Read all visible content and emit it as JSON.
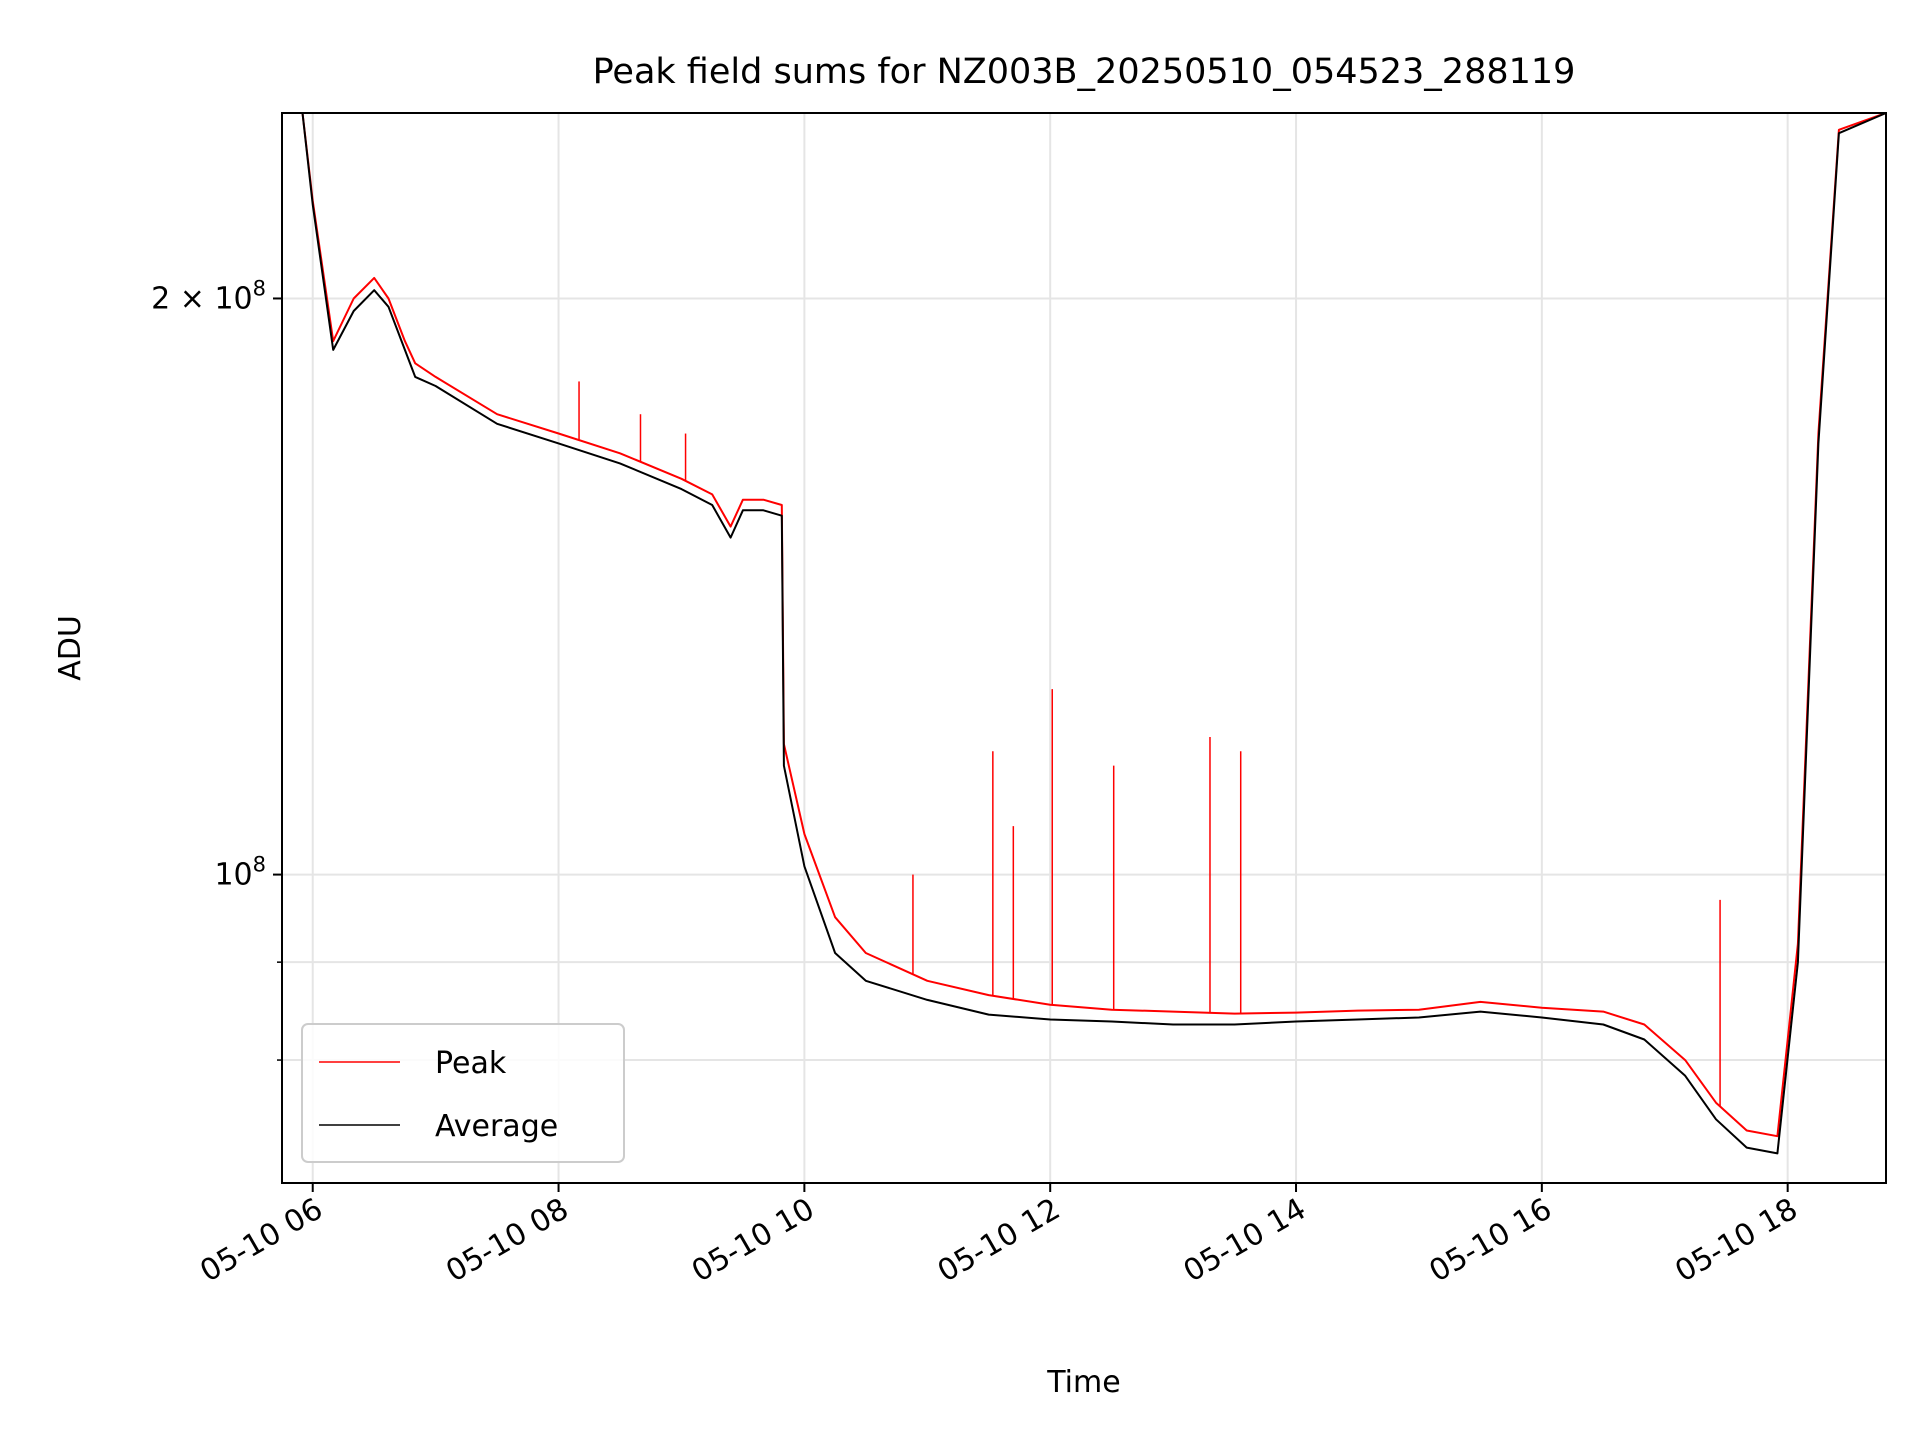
{
  "chart_data": {
    "type": "line",
    "title": "Peak field sums for NZ003B_20250510_054523_288119",
    "xlabel": "Time",
    "ylabel": "ADU",
    "xscale": "time",
    "yscale": "log",
    "xlim": [
      "2025-05-10 05:45",
      "2025-05-10 18:48"
    ],
    "ylim": [
      69000000,
      250000000
    ],
    "grid": true,
    "legend_position": "lower left",
    "x_ticks": [
      {
        "value": "2025-05-10 06:00",
        "label": "05-10 06"
      },
      {
        "value": "2025-05-10 08:00",
        "label": "05-10 08"
      },
      {
        "value": "2025-05-10 10:00",
        "label": "05-10 10"
      },
      {
        "value": "2025-05-10 12:00",
        "label": "05-10 12"
      },
      {
        "value": "2025-05-10 14:00",
        "label": "05-10 14"
      },
      {
        "value": "2025-05-10 16:00",
        "label": "05-10 16"
      },
      {
        "value": "2025-05-10 18:00",
        "label": "05-10 18"
      }
    ],
    "y_ticks": [
      {
        "value": 100000000,
        "label": "10",
        "exp": "8",
        "mantissa": ""
      },
      {
        "value": 200000000,
        "label": "10",
        "exp": "8",
        "mantissa": "2 × "
      }
    ],
    "y_minor_ticks": [
      80000000,
      90000000
    ],
    "series": [
      {
        "name": "Peak",
        "color": "#ff0000",
        "x": [
          "2025-05-10 05:45",
          "2025-05-10 05:55",
          "2025-05-10 06:00",
          "2025-05-10 06:10",
          "2025-05-10 06:20",
          "2025-05-10 06:30",
          "2025-05-10 06:37",
          "2025-05-10 06:45",
          "2025-05-10 06:50",
          "2025-05-10 07:00",
          "2025-05-10 07:30",
          "2025-05-10 08:00",
          "2025-05-10 08:30",
          "2025-05-10 09:00",
          "2025-05-10 09:15",
          "2025-05-10 09:24",
          "2025-05-10 09:30",
          "2025-05-10 09:40",
          "2025-05-10 09:49",
          "2025-05-10 09:50",
          "2025-05-10 10:00",
          "2025-05-10 10:15",
          "2025-05-10 10:30",
          "2025-05-10 11:00",
          "2025-05-10 11:30",
          "2025-05-10 12:00",
          "2025-05-10 12:30",
          "2025-05-10 13:00",
          "2025-05-10 13:30",
          "2025-05-10 14:00",
          "2025-05-10 14:30",
          "2025-05-10 15:00",
          "2025-05-10 15:30",
          "2025-05-10 16:00",
          "2025-05-10 16:30",
          "2025-05-10 16:50",
          "2025-05-10 17:10",
          "2025-05-10 17:25",
          "2025-05-10 17:40",
          "2025-05-10 17:55",
          "2025-05-10 18:05",
          "2025-05-10 18:15",
          "2025-05-10 18:25",
          "2025-05-10 18:48"
        ],
        "y": [
          250000000,
          250000000,
          225000000,
          190000000,
          200000000,
          205000000,
          200000000,
          190000000,
          185000000,
          182000000,
          174000000,
          170000000,
          166000000,
          161000000,
          158000000,
          152000000,
          157000000,
          157000000,
          156000000,
          117000000,
          105000000,
          95000000,
          91000000,
          88000000,
          86500000,
          85500000,
          85000000,
          84800000,
          84600000,
          84700000,
          84900000,
          85000000,
          85800000,
          85200000,
          84800000,
          83500000,
          80000000,
          76000000,
          73500000,
          73000000,
          92000000,
          170000000,
          245000000,
          250000000
        ]
      },
      {
        "name": "Average",
        "color": "#000000",
        "x": [
          "2025-05-10 05:45",
          "2025-05-10 05:55",
          "2025-05-10 06:00",
          "2025-05-10 06:10",
          "2025-05-10 06:20",
          "2025-05-10 06:30",
          "2025-05-10 06:37",
          "2025-05-10 06:45",
          "2025-05-10 06:50",
          "2025-05-10 07:00",
          "2025-05-10 07:30",
          "2025-05-10 08:00",
          "2025-05-10 08:30",
          "2025-05-10 09:00",
          "2025-05-10 09:15",
          "2025-05-10 09:24",
          "2025-05-10 09:30",
          "2025-05-10 09:40",
          "2025-05-10 09:49",
          "2025-05-10 09:50",
          "2025-05-10 10:00",
          "2025-05-10 10:15",
          "2025-05-10 10:30",
          "2025-05-10 11:00",
          "2025-05-10 11:30",
          "2025-05-10 12:00",
          "2025-05-10 12:30",
          "2025-05-10 13:00",
          "2025-05-10 13:30",
          "2025-05-10 14:00",
          "2025-05-10 14:30",
          "2025-05-10 15:00",
          "2025-05-10 15:30",
          "2025-05-10 16:00",
          "2025-05-10 16:30",
          "2025-05-10 16:50",
          "2025-05-10 17:10",
          "2025-05-10 17:25",
          "2025-05-10 17:40",
          "2025-05-10 17:55",
          "2025-05-10 18:05",
          "2025-05-10 18:15",
          "2025-05-10 18:25",
          "2025-05-10 18:48"
        ],
        "y": [
          250000000,
          250000000,
          224000000,
          188000000,
          197000000,
          202000000,
          198000000,
          188000000,
          182000000,
          180000000,
          172000000,
          168000000,
          164000000,
          159000000,
          156000000,
          150000000,
          155000000,
          155000000,
          154000000,
          114000000,
          101000000,
          91000000,
          88000000,
          86000000,
          84500000,
          84000000,
          83800000,
          83500000,
          83500000,
          83800000,
          84000000,
          84200000,
          84800000,
          84200000,
          83500000,
          82000000,
          78500000,
          74500000,
          72000000,
          71500000,
          90000000,
          168000000,
          244000000,
          250000000
        ]
      }
    ],
    "spikes": {
      "series": "Peak",
      "points": [
        {
          "x": "2025-05-10 08:10",
          "y": 181000000
        },
        {
          "x": "2025-05-10 08:40",
          "y": 174000000
        },
        {
          "x": "2025-05-10 09:02",
          "y": 170000000
        },
        {
          "x": "2025-05-10 10:53",
          "y": 100000000
        },
        {
          "x": "2025-05-10 11:32",
          "y": 116000000
        },
        {
          "x": "2025-05-10 11:42",
          "y": 106000000
        },
        {
          "x": "2025-05-10 12:01",
          "y": 125000000
        },
        {
          "x": "2025-05-10 12:31",
          "y": 114000000
        },
        {
          "x": "2025-05-10 13:18",
          "y": 118000000
        },
        {
          "x": "2025-05-10 13:33",
          "y": 116000000
        },
        {
          "x": "2025-05-10 17:27",
          "y": 97000000
        }
      ]
    }
  }
}
